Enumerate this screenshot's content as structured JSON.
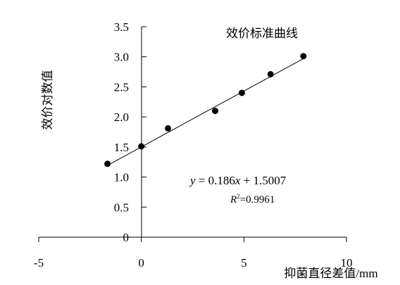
{
  "chart_data": {
    "type": "scatter",
    "title": "效价标准曲线",
    "xlabel": "抑菌直径差值/mm",
    "ylabel": "效价对数值",
    "xlim": [
      -5,
      10
    ],
    "ylim": [
      0,
      3.5
    ],
    "x_ticks": [
      -5,
      0,
      5,
      10
    ],
    "x_tick_labels": [
      "-5",
      "0",
      "5",
      "10"
    ],
    "y_ticks": [
      0,
      0.5,
      1.0,
      1.5,
      2.0,
      2.5,
      3.0,
      3.5
    ],
    "y_tick_labels": [
      "0",
      "0.5",
      "1.0",
      "1.5",
      "2.0",
      "2.5",
      "3.0",
      "3.5"
    ],
    "grid": false,
    "points": [
      {
        "x": -1.65,
        "y": 1.22
      },
      {
        "x": 0.0,
        "y": 1.51
      },
      {
        "x": 1.3,
        "y": 1.81
      },
      {
        "x": 3.6,
        "y": 2.1
      },
      {
        "x": 4.9,
        "y": 2.4
      },
      {
        "x": 6.3,
        "y": 2.71
      },
      {
        "x": 7.9,
        "y": 3.01
      }
    ],
    "trendline": {
      "slope": 0.186,
      "intercept": 1.5007,
      "x_start": -1.65,
      "x_end": 7.9,
      "equation_y": "y",
      "equation_eq": " = 0.186",
      "equation_x": "x",
      "equation_rest": " + 1.5007",
      "r2_r": "R",
      "r2_sup": "2",
      "r2_value": "=0.9961"
    },
    "colors": {
      "marker": "#000000",
      "line": "#000000",
      "axis": "#000000"
    }
  }
}
